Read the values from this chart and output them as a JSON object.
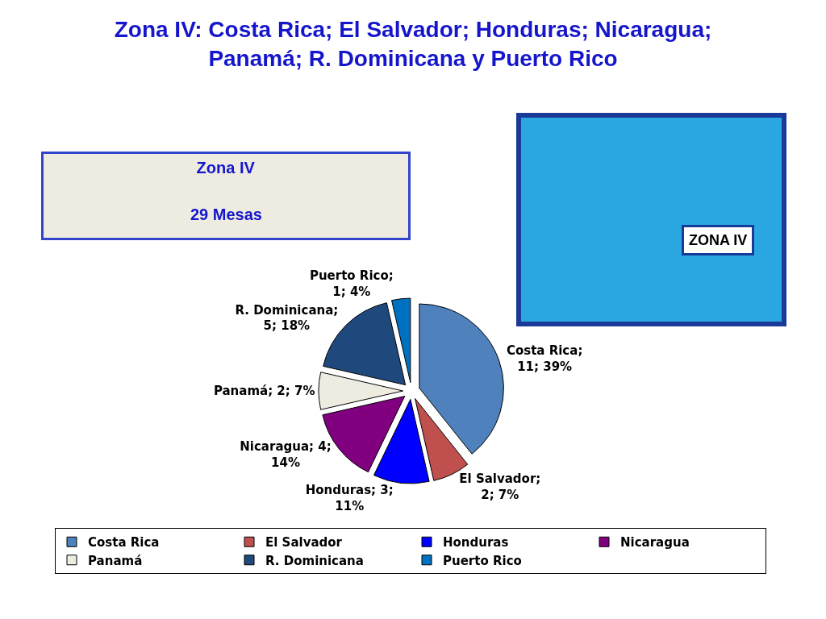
{
  "chart_data": {
    "type": "pie",
    "title": "Zona IV: Costa Rica; El Salvador; Honduras; Nicaragua; Panamá; R. Dominicana y Puerto Rico",
    "subtitle": "Zona IV",
    "annotations": [
      "29 Mesas",
      "ZONA IV"
    ],
    "categories": [
      "Costa Rica",
      "El Salvador",
      "Honduras",
      "Nicaragua",
      "Panamá",
      "R. Dominicana",
      "Puerto Rico"
    ],
    "values": [
      11,
      2,
      3,
      4,
      2,
      5,
      1
    ],
    "colors": [
      "#4f81bd",
      "#c0504d",
      "#0000ff",
      "#800080",
      "#eeece1",
      "#1f497d",
      "#0070c0"
    ],
    "value_labels": [
      "Costa Rica; 11; 39%",
      "El Salvador; 2; 7%",
      "Honduras; 3; 11%",
      "Nicaragua; 4; 14%",
      "Panamá; 2; 7%",
      "R. Dominicana; 5; 18%",
      "Puerto Rico; 1; 4%"
    ],
    "legend": "bottom"
  }
}
